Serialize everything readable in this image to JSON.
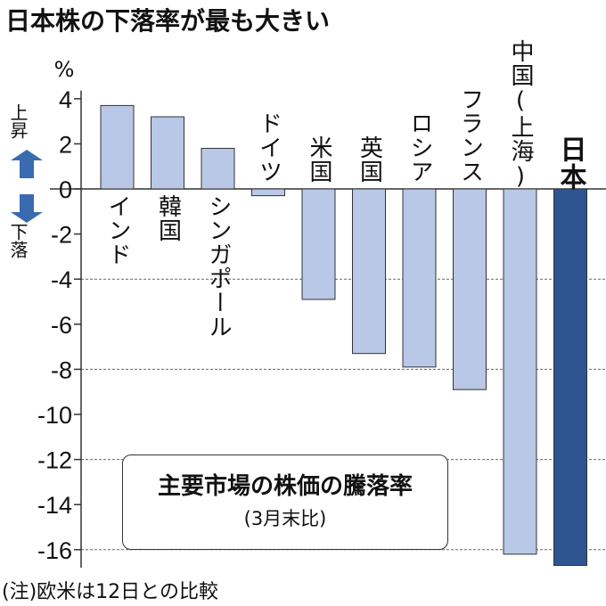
{
  "title": "日本株の下落率が最も大きい",
  "chart_data": {
    "type": "bar",
    "title": "主要市場の株価の騰落率",
    "subtitle": "(3月末比)",
    "ylabel": "%",
    "ylim": [
      -16.8,
      4.4
    ],
    "yticks": [
      4,
      2,
      0,
      -2,
      -4,
      -6,
      -8,
      -10,
      -12,
      -14,
      -16
    ],
    "grid": "dashed at -4, -8, -12, -16",
    "categories": [
      "インド",
      "韓国",
      "シンガポール",
      "ドイツ",
      "米国",
      "英国",
      "ロシア",
      "フランス",
      "中国(上海)",
      "日本"
    ],
    "values": [
      3.7,
      3.2,
      1.8,
      -0.3,
      -4.9,
      -7.3,
      -7.9,
      -8.9,
      -16.2,
      -16.7
    ],
    "highlight": "日本",
    "colors": {
      "bar": "#b8c8e6",
      "highlight": "#2e5590",
      "outline": "#333333"
    },
    "legend_placement": "bottom-center box",
    "up_label": "上昇",
    "down_label": "下落",
    "note": "(注)欧米は12日との比較"
  }
}
